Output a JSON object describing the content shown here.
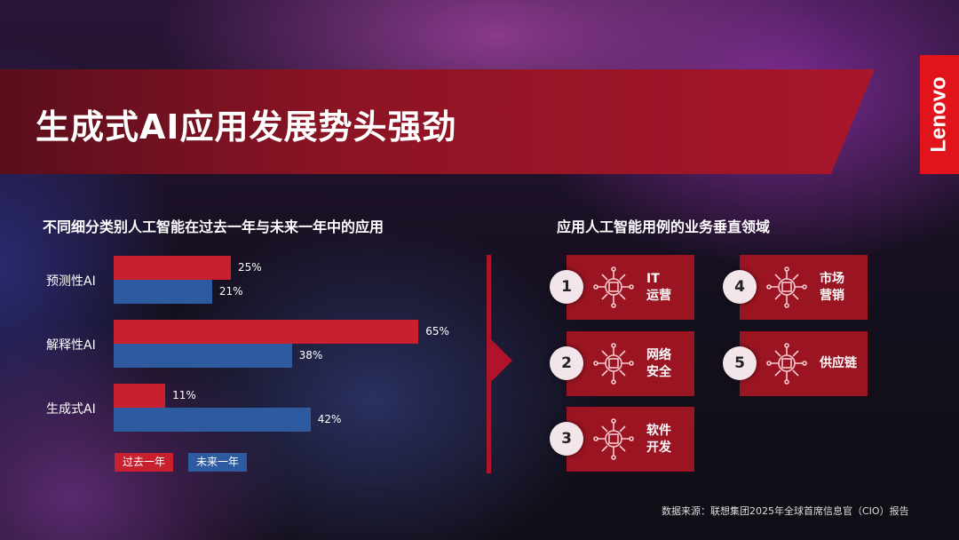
{
  "header": {
    "title": "生成式AI应用发展势头强劲",
    "logo": "Lenovo"
  },
  "colors": {
    "past": "#c8202e",
    "future": "#2e5aa0",
    "brand": "#e1141c",
    "card": "#9b1422"
  },
  "chart_data": {
    "type": "bar",
    "orientation": "horizontal",
    "title": "不同细分类别人工智能在过去一年与未来一年中的应用",
    "categories": [
      "预测性AI",
      "解释性AI",
      "生成式AI"
    ],
    "series": [
      {
        "name": "过去一年",
        "values": [
          25,
          65,
          11
        ]
      },
      {
        "name": "未来一年",
        "values": [
          21,
          38,
          42
        ]
      }
    ],
    "labels": [
      [
        "25%",
        "21%"
      ],
      [
        "65%",
        "38%"
      ],
      [
        "11%",
        "42%"
      ]
    ],
    "unit": "%",
    "grid": false,
    "legend": "bottom-left"
  },
  "verticals": {
    "title": "应用人工智能用例的业务垂直领域",
    "items": [
      {
        "num": "1",
        "line1": "IT",
        "line2": "运营",
        "icon": "circuit-chip-icon"
      },
      {
        "num": "2",
        "line1": "网络",
        "line2": "安全",
        "icon": "ai-shield-icon"
      },
      {
        "num": "3",
        "line1": "软件",
        "line2": "开发",
        "icon": "brain-browser-icon"
      },
      {
        "num": "4",
        "line1": "市场",
        "line2": "营销",
        "icon": "ai-megaphone-icon"
      },
      {
        "num": "5",
        "line1": "供应链",
        "line2": "",
        "icon": "chip-network-icon"
      }
    ]
  },
  "source": "数据来源：联想集团2025年全球首席信息官（CIO）报告"
}
